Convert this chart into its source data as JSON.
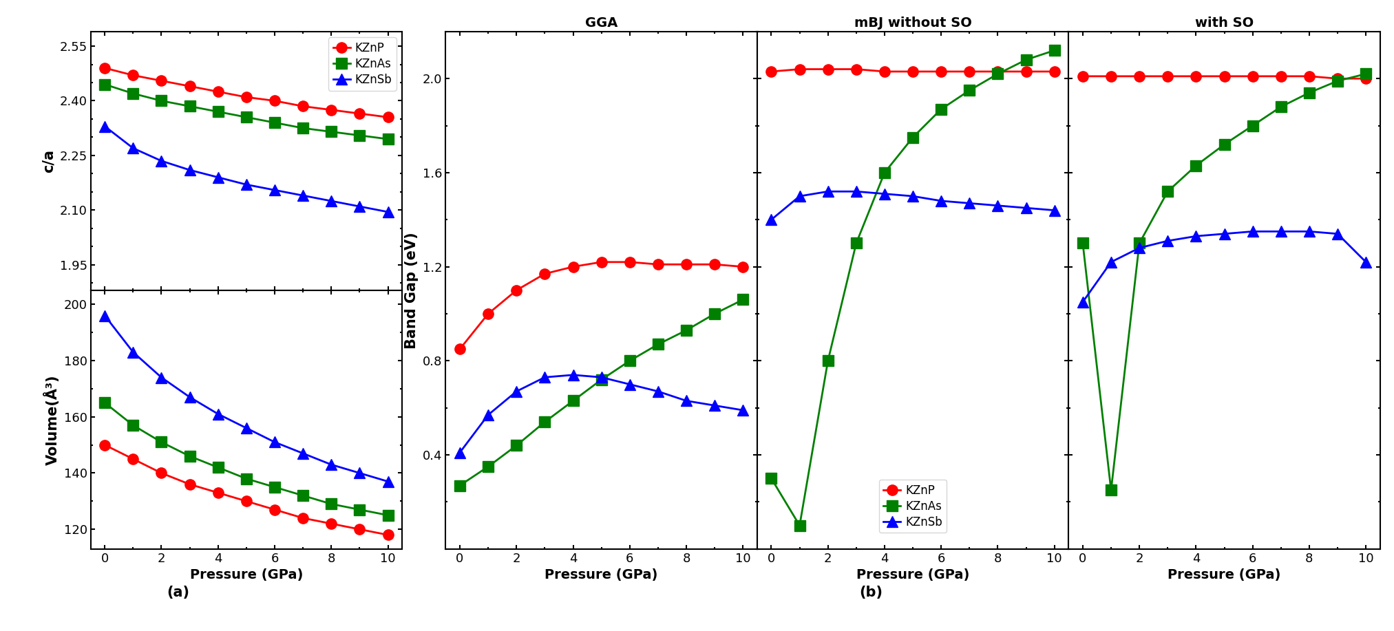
{
  "pressure": [
    0,
    1,
    2,
    3,
    4,
    5,
    6,
    7,
    8,
    9,
    10
  ],
  "ca_KZnP": [
    2.49,
    2.47,
    2.455,
    2.44,
    2.425,
    2.41,
    2.4,
    2.385,
    2.375,
    2.365,
    2.355
  ],
  "ca_KZnAs": [
    2.445,
    2.42,
    2.4,
    2.385,
    2.37,
    2.355,
    2.34,
    2.325,
    2.315,
    2.305,
    2.295
  ],
  "ca_KZnSb": [
    2.33,
    2.27,
    2.235,
    2.21,
    2.19,
    2.17,
    2.155,
    2.14,
    2.125,
    2.11,
    2.095
  ],
  "vol_KZnP": [
    150,
    145,
    140,
    136,
    133,
    130,
    127,
    124,
    122,
    120,
    118
  ],
  "vol_KZnAs": [
    165,
    157,
    151,
    146,
    142,
    138,
    135,
    132,
    129,
    127,
    125
  ],
  "vol_KZnSb": [
    196,
    183,
    174,
    167,
    161,
    156,
    151,
    147,
    143,
    140,
    137
  ],
  "gga_KZnP": [
    0.85,
    1.0,
    1.1,
    1.17,
    1.2,
    1.22,
    1.22,
    1.21,
    1.21,
    1.21,
    1.2
  ],
  "gga_KZnAs": [
    0.27,
    0.35,
    0.44,
    0.54,
    0.63,
    0.72,
    0.8,
    0.87,
    0.93,
    1.0,
    1.06
  ],
  "gga_KZnSb": [
    0.41,
    0.57,
    0.67,
    0.73,
    0.74,
    0.73,
    0.7,
    0.67,
    0.63,
    0.61,
    0.59
  ],
  "mbj_KZnP": [
    2.03,
    2.04,
    2.04,
    2.04,
    2.03,
    2.03,
    2.03,
    2.03,
    2.03,
    2.03,
    2.03
  ],
  "mbj_KZnAs": [
    0.3,
    0.1,
    0.8,
    1.3,
    1.6,
    1.75,
    1.87,
    1.95,
    2.02,
    2.08,
    2.12
  ],
  "mbj_KZnSb": [
    1.4,
    1.5,
    1.52,
    1.52,
    1.51,
    1.5,
    1.48,
    1.47,
    1.46,
    1.45,
    1.44
  ],
  "so_KZnP": [
    2.01,
    2.01,
    2.01,
    2.01,
    2.01,
    2.01,
    2.01,
    2.01,
    2.01,
    2.0,
    2.0
  ],
  "so_KZnAs": [
    1.3,
    0.25,
    1.3,
    1.52,
    1.63,
    1.72,
    1.8,
    1.88,
    1.94,
    1.99,
    2.02
  ],
  "so_KZnSb": [
    1.05,
    1.22,
    1.28,
    1.31,
    1.33,
    1.34,
    1.35,
    1.35,
    1.35,
    1.34,
    1.22
  ],
  "color_red": "#ff0000",
  "color_green": "#008000",
  "color_blue": "#0000ff",
  "label_KZnP": "KZnP",
  "label_KZnAs": "KZnAs",
  "label_KZnSb": "KZnSb",
  "xlabel": "Pressure (GPa)",
  "ylabel_ca": "c/a",
  "ylabel_vol": "Volume(Å³)",
  "ylabel_bg": "Band Gap (eV)",
  "title_gga": "GGA",
  "title_mbj": "mBJ without SO",
  "title_so": "with SO",
  "label_a": "(a)",
  "label_b": "(b)"
}
